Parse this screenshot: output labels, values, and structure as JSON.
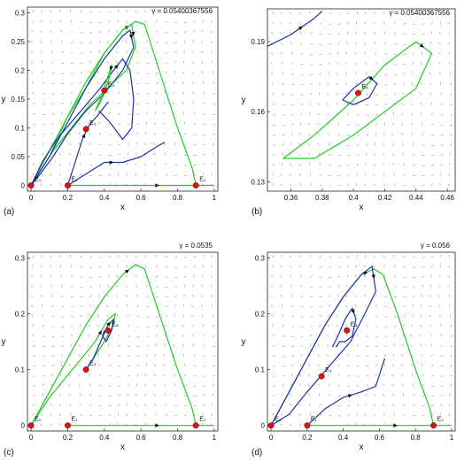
{
  "figure": {
    "panels": [
      {
        "panel_label": "(a)",
        "gamma_label": "γ = 0.05400367556",
        "xlabel": "x",
        "ylabel": "y",
        "xlim": [
          -0.02,
          1.02
        ],
        "ylim": [
          -0.01,
          0.31
        ],
        "xticks": [
          0,
          0.2,
          0.4,
          0.6,
          0.8,
          1
        ],
        "xticklabels": [
          "0",
          "0.2",
          "0.4",
          "0.6",
          "0.8",
          "1"
        ],
        "yticks": [
          0,
          0.05,
          0.1,
          0.15,
          0.2,
          0.25,
          0.3
        ],
        "yticklabels": [
          "0",
          "0.05",
          "0.1",
          "0.15",
          "0.2",
          "0.25",
          "0.3"
        ],
        "equilibria": [
          {
            "label": "E₀",
            "x": 0.0,
            "y": 0.0
          },
          {
            "label": "E₁",
            "x": 0.2,
            "y": 0.0
          },
          {
            "label": "E₂",
            "x": 0.9,
            "y": 0.0
          },
          {
            "label": "E₃",
            "x": 0.3,
            "y": 0.098
          },
          {
            "label": "E₄",
            "x": 0.4,
            "y": 0.165
          }
        ]
      },
      {
        "panel_label": "(b)",
        "gamma_label": "γ = 0.05400367556",
        "xlabel": "x",
        "ylabel": "y",
        "xlim": [
          0.345,
          0.465
        ],
        "ylim": [
          0.126,
          0.204
        ],
        "xticks": [
          0.36,
          0.38,
          0.4,
          0.42,
          0.44,
          0.46
        ],
        "xticklabels": [
          "0.36",
          "0.38",
          "0.4",
          "0.42",
          "0.44",
          "0.46"
        ],
        "yticks": [
          0.13,
          0.16,
          0.19
        ],
        "yticklabels": [
          "0.13",
          "0.16",
          "0.19"
        ],
        "equilibria": [
          {
            "label": "E₄",
            "x": 0.403,
            "y": 0.168
          }
        ]
      },
      {
        "panel_label": "(c)",
        "gamma_label": "γ = 0.0535",
        "xlabel": "x",
        "ylabel": "y",
        "xlim": [
          -0.02,
          1.02
        ],
        "ylim": [
          -0.01,
          0.31
        ],
        "xticks": [
          0,
          0.2,
          0.4,
          0.6,
          0.8,
          1
        ],
        "xticklabels": [
          "0",
          "0.2",
          "0.4",
          "0.6",
          "0.8",
          "1"
        ],
        "yticks": [
          0,
          0.1,
          0.2,
          0.3
        ],
        "yticklabels": [
          "0",
          "0.1",
          "0.2",
          "0.3"
        ],
        "equilibria": [
          {
            "label": "E₀",
            "x": 0.0,
            "y": 0.0
          },
          {
            "label": "E₁",
            "x": 0.2,
            "y": 0.0
          },
          {
            "label": "E₂",
            "x": 0.9,
            "y": 0.0
          },
          {
            "label": "E₃",
            "x": 0.3,
            "y": 0.1
          },
          {
            "label": "E₄",
            "x": 0.42,
            "y": 0.17
          }
        ]
      },
      {
        "panel_label": "(d)",
        "gamma_label": "γ = 0.056",
        "xlabel": "x",
        "ylabel": "y",
        "xlim": [
          -0.02,
          1.02
        ],
        "ylim": [
          -0.01,
          0.31
        ],
        "xticks": [
          0,
          0.2,
          0.4,
          0.6,
          0.8,
          1
        ],
        "xticklabels": [
          "0",
          "0.2",
          "0.4",
          "0.6",
          "0.8",
          "1"
        ],
        "yticks": [
          0,
          0.1,
          0.2,
          0.3
        ],
        "yticklabels": [
          "0",
          "0.1",
          "0.2",
          "0.3"
        ],
        "equilibria": [
          {
            "label": "E₀",
            "x": 0.0,
            "y": 0.0
          },
          {
            "label": "E₁",
            "x": 0.2,
            "y": 0.0
          },
          {
            "label": "E₂",
            "x": 0.9,
            "y": 0.0
          },
          {
            "label": "E₃",
            "x": 0.28,
            "y": 0.088
          },
          {
            "label": "E₄",
            "x": 0.42,
            "y": 0.17
          }
        ]
      }
    ]
  },
  "chart_data": [
    {
      "type": "line",
      "panel": "(a)",
      "grid": true,
      "series": [
        {
          "color": "#22cc22",
          "x": [
            0.0,
            0.1,
            0.2,
            0.3,
            0.4,
            0.5,
            0.57,
            0.62,
            0.7,
            0.8,
            0.88,
            0.9
          ],
          "y": [
            0.0,
            0.06,
            0.12,
            0.18,
            0.23,
            0.27,
            0.285,
            0.28,
            0.2,
            0.1,
            0.03,
            0.0
          ]
        },
        {
          "color": "#22cc22",
          "x": [
            0.0,
            0.1,
            0.2,
            0.3,
            0.4,
            0.5,
            0.55,
            0.57,
            0.52,
            0.42,
            0.32,
            0.22,
            0.12,
            0.04,
            0.0
          ],
          "y": [
            0.0,
            0.05,
            0.12,
            0.17,
            0.23,
            0.27,
            0.28,
            0.24,
            0.2,
            0.17,
            0.14,
            0.1,
            0.06,
            0.02,
            0.0
          ]
        },
        {
          "color": "#1a33aa",
          "x": [
            0.0,
            0.1,
            0.2,
            0.3,
            0.4,
            0.5,
            0.54,
            0.56,
            0.5,
            0.4,
            0.3,
            0.2,
            0.12,
            0.05,
            0.0
          ],
          "y": [
            0.0,
            0.05,
            0.11,
            0.17,
            0.22,
            0.26,
            0.27,
            0.24,
            0.2,
            0.16,
            0.13,
            0.09,
            0.05,
            0.02,
            0.0
          ]
        },
        {
          "color": "#1a33aa",
          "x": [
            0.0,
            0.06,
            0.14,
            0.22,
            0.3,
            0.38,
            0.45,
            0.5,
            0.54,
            0.56,
            0.55,
            0.5,
            0.43,
            0.37
          ],
          "y": [
            0.0,
            0.04,
            0.08,
            0.11,
            0.14,
            0.17,
            0.2,
            0.22,
            0.2,
            0.15,
            0.1,
            0.08,
            0.11,
            0.13
          ]
        },
        {
          "color": "#1a33aa",
          "x": [
            0.2,
            0.3,
            0.4,
            0.5,
            0.6,
            0.7,
            0.73
          ],
          "y": [
            0.0,
            0.02,
            0.04,
            0.04,
            0.05,
            0.07,
            0.075
          ]
        },
        {
          "color": "#1a33aa",
          "x": [
            0.2,
            0.24,
            0.28,
            0.31,
            0.33,
            0.36,
            0.42
          ],
          "y": [
            0.0,
            0.04,
            0.08,
            0.1,
            0.11,
            0.12,
            0.145
          ]
        },
        {
          "color": "#22cc22",
          "x": [
            0.2,
            0.4,
            0.6,
            0.8,
            0.9,
            1.0
          ],
          "y": [
            0.0,
            0.0,
            0.0,
            0.0,
            0.0,
            0.0
          ]
        },
        {
          "color": "#22cc22",
          "x": [
            0.35,
            0.38,
            0.42,
            0.44,
            0.43,
            0.4,
            0.37,
            0.35
          ],
          "y": [
            0.13,
            0.15,
            0.19,
            0.21,
            0.19,
            0.16,
            0.14,
            0.13
          ]
        }
      ]
    },
    {
      "type": "line",
      "panel": "(b)",
      "grid": true,
      "series": [
        {
          "color": "#22cc22",
          "x": [
            0.355,
            0.375,
            0.4,
            0.42,
            0.44,
            0.45,
            0.44,
            0.42,
            0.4,
            0.375,
            0.355
          ],
          "y": [
            0.14,
            0.15,
            0.165,
            0.18,
            0.19,
            0.185,
            0.17,
            0.16,
            0.15,
            0.14,
            0.14
          ]
        },
        {
          "color": "#1a33aa",
          "x": [
            0.393,
            0.4,
            0.41,
            0.415,
            0.41,
            0.4,
            0.393
          ],
          "y": [
            0.165,
            0.17,
            0.175,
            0.172,
            0.166,
            0.163,
            0.165
          ]
        },
        {
          "color": "#1a33aa",
          "x": [
            0.345,
            0.36,
            0.375,
            0.38
          ],
          "y": [
            0.188,
            0.193,
            0.2,
            0.203
          ]
        }
      ]
    },
    {
      "type": "line",
      "panel": "(c)",
      "grid": true,
      "series": [
        {
          "color": "#22cc22",
          "x": [
            0.0,
            0.1,
            0.2,
            0.3,
            0.4,
            0.5,
            0.57,
            0.62,
            0.7,
            0.8,
            0.88,
            0.9
          ],
          "y": [
            0.0,
            0.06,
            0.12,
            0.18,
            0.23,
            0.27,
            0.288,
            0.28,
            0.2,
            0.1,
            0.03,
            0.0
          ]
        },
        {
          "color": "#22cc22",
          "x": [
            0.0,
            0.1,
            0.2,
            0.3,
            0.35,
            0.42,
            0.46,
            0.45,
            0.4,
            0.34,
            0.3
          ],
          "y": [
            0.0,
            0.05,
            0.09,
            0.13,
            0.15,
            0.19,
            0.2,
            0.18,
            0.15,
            0.12,
            0.1
          ]
        },
        {
          "color": "#1a33aa",
          "x": [
            0.3,
            0.34,
            0.38,
            0.42,
            0.45,
            0.44,
            0.41,
            0.39,
            0.4
          ],
          "y": [
            0.1,
            0.12,
            0.15,
            0.18,
            0.19,
            0.17,
            0.15,
            0.16,
            0.17
          ]
        },
        {
          "color": "#22cc22",
          "x": [
            0.2,
            0.4,
            0.6,
            0.8,
            0.9,
            1.0
          ],
          "y": [
            0.0,
            0.0,
            0.0,
            0.0,
            0.0,
            0.0
          ]
        }
      ]
    },
    {
      "type": "line",
      "panel": "(d)",
      "grid": true,
      "series": [
        {
          "color": "#22cc22",
          "x": [
            0.0,
            0.1,
            0.2,
            0.3,
            0.4,
            0.5,
            0.57,
            0.62,
            0.7,
            0.8,
            0.88,
            0.9
          ],
          "y": [
            0.0,
            0.06,
            0.12,
            0.18,
            0.23,
            0.27,
            0.28,
            0.27,
            0.2,
            0.1,
            0.03,
            0.0
          ]
        },
        {
          "color": "#1a33aa",
          "x": [
            0.0,
            0.1,
            0.2,
            0.3,
            0.4,
            0.5,
            0.56,
            0.58,
            0.52,
            0.44,
            0.36,
            0.28,
            0.2,
            0.1,
            0.0
          ],
          "y": [
            0.0,
            0.06,
            0.12,
            0.18,
            0.23,
            0.27,
            0.285,
            0.24,
            0.2,
            0.15,
            0.12,
            0.09,
            0.06,
            0.02,
            0.0
          ]
        },
        {
          "color": "#1a33aa",
          "x": [
            0.2,
            0.3,
            0.4,
            0.5,
            0.58,
            0.63
          ],
          "y": [
            0.0,
            0.03,
            0.05,
            0.06,
            0.07,
            0.12
          ]
        },
        {
          "color": "#1a33aa",
          "x": [
            0.34,
            0.37,
            0.41,
            0.45,
            0.47,
            0.45,
            0.41,
            0.38,
            0.36
          ],
          "y": [
            0.14,
            0.16,
            0.19,
            0.21,
            0.19,
            0.16,
            0.15,
            0.15,
            0.14
          ]
        },
        {
          "color": "#22cc22",
          "x": [
            0.2,
            0.4,
            0.6,
            0.8,
            0.9,
            1.0
          ],
          "y": [
            0.0,
            0.0,
            0.0,
            0.0,
            0.0,
            0.0
          ]
        }
      ]
    }
  ]
}
